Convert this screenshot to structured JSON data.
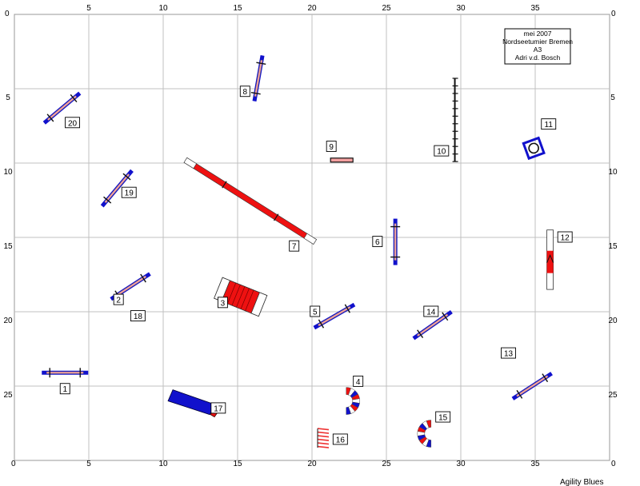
{
  "course": {
    "x_range": [
      0,
      40
    ],
    "y_range": [
      0,
      30
    ],
    "x_ticks": [
      "0",
      "5",
      "10",
      "15",
      "20",
      "25",
      "30",
      "35"
    ],
    "y_ticks": [
      "5",
      "10",
      "15",
      "20",
      "25"
    ],
    "corner_label_top_left": "0",
    "corner_label_top_right": "0",
    "corner_label_bottom_left": "0",
    "corner_label_bottom_right": "0"
  },
  "info_box": {
    "line1": "mei 2007",
    "line2": "Nordseetumier Bremen",
    "line3": "A3",
    "line4": "Adri v.d. Bosch"
  },
  "obstacles": [
    {
      "num": "1",
      "kind": "jump",
      "x": 3.4,
      "y": 24.1,
      "angle": 0,
      "label_x": 3.4,
      "label_y": 25.2
    },
    {
      "num": "2",
      "kind": "jump",
      "x": 7.8,
      "y": 18.3,
      "angle": 33,
      "label_x": 7.0,
      "label_y": 19.2
    },
    {
      "num": "18",
      "kind": "label",
      "label_x": 8.3,
      "label_y": 20.3
    },
    {
      "num": "3",
      "kind": "a-frame",
      "x": 15.2,
      "y": 19.0,
      "angle": 22,
      "label_x": 14.0,
      "label_y": 19.4
    },
    {
      "num": "4",
      "kind": "tunnel",
      "x": 22.3,
      "y": 26.0,
      "label_x": 23.1,
      "label_y": 24.7
    },
    {
      "num": "5",
      "kind": "jump",
      "x": 21.5,
      "y": 20.3,
      "angle": 30,
      "label_x": 20.2,
      "label_y": 20.0
    },
    {
      "num": "6",
      "kind": "jump",
      "x": 25.6,
      "y": 15.3,
      "angle": 90,
      "label_x": 24.4,
      "label_y": 15.3
    },
    {
      "num": "7",
      "kind": "dogwalk",
      "x": 15.7,
      "y": 13.3,
      "angle": 30,
      "label_x": 18.8,
      "label_y": 15.6
    },
    {
      "num": "8",
      "kind": "jump",
      "x": 16.4,
      "y": 4.3,
      "angle": 80,
      "label_x": 15.5,
      "label_y": 5.2
    },
    {
      "num": "9",
      "kind": "jump-small",
      "x": 22.0,
      "y": 9.8,
      "angle": 0,
      "label_x": 21.3,
      "label_y": 8.9
    },
    {
      "num": "10",
      "kind": "weave",
      "x": 29.6,
      "y": 7.0,
      "label_x": 28.7,
      "label_y": 9.2
    },
    {
      "num": "11",
      "kind": "tyre",
      "x": 34.9,
      "y": 9.0,
      "label_x": 35.9,
      "label_y": 7.4
    },
    {
      "num": "12",
      "kind": "table-bar",
      "x": 36.0,
      "y": 16.5,
      "label_x": 37.0,
      "label_y": 15.0
    },
    {
      "num": "13",
      "kind": "jump",
      "x": 34.8,
      "y": 25.0,
      "angle": 33,
      "label_x": 33.2,
      "label_y": 22.8
    },
    {
      "num": "14",
      "kind": "jump",
      "x": 28.1,
      "y": 20.9,
      "angle": 35,
      "label_x": 28.0,
      "label_y": 20.0
    },
    {
      "num": "15",
      "kind": "tunnel",
      "x": 28.0,
      "y": 28.2,
      "label_x": 28.8,
      "label_y": 27.1
    },
    {
      "num": "16",
      "kind": "chute",
      "x": 20.7,
      "y": 28.5,
      "label_x": 21.9,
      "label_y": 28.6
    },
    {
      "num": "17",
      "kind": "ramp",
      "x": 11.4,
      "y": 26.0,
      "angle": 25,
      "label_x": 13.7,
      "label_y": 26.5
    },
    {
      "num": "19",
      "kind": "jump",
      "x": 6.9,
      "y": 11.7,
      "angle": 50,
      "label_x": 7.7,
      "label_y": 12.0
    },
    {
      "num": "20",
      "kind": "jump",
      "x": 3.2,
      "y": 6.3,
      "angle": 40,
      "label_x": 3.9,
      "label_y": 7.3
    }
  ],
  "colors": {
    "grid": "#c0c0c0",
    "red": "#ee1111",
    "blue": "#1111cc",
    "bar_stripe": "#f4a0a0",
    "chute": "#ee3333"
  },
  "footer": {
    "brand": "Agility Blues"
  }
}
